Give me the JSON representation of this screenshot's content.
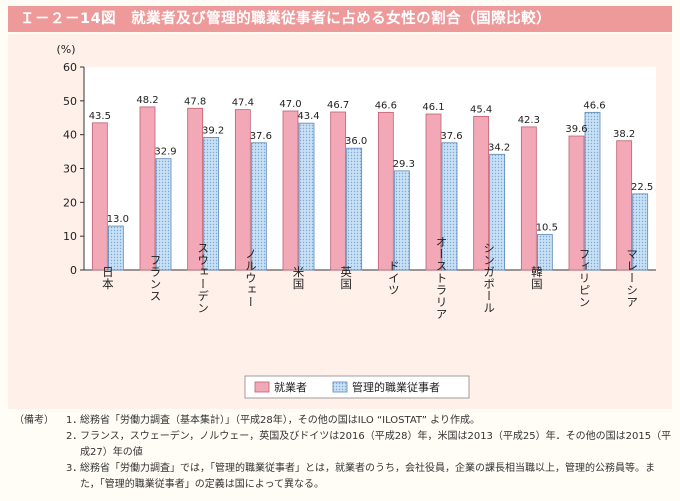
{
  "header": {
    "title": "Ｉ－２－14図　就業者及び管理的職業従事者に占める女性の割合（国際比較）"
  },
  "chart_data": {
    "type": "bar",
    "title": "就業者及び管理的職業従事者に占める女性の割合（国際比較）",
    "ylabel": "(%)",
    "ylim": [
      0,
      60
    ],
    "yticks": [
      0,
      10,
      20,
      30,
      40,
      50,
      60
    ],
    "categories": [
      "日本",
      "フランス",
      "スウェーデン",
      "ノルウェー",
      "米国",
      "英国",
      "ドイツ",
      "オーストラリア",
      "シンガポール",
      "韓国",
      "フィリピン",
      "マレーシア"
    ],
    "series": [
      {
        "name": "就業者",
        "values": [
          43.5,
          48.2,
          47.8,
          47.4,
          47.0,
          46.7,
          46.6,
          46.1,
          45.4,
          42.3,
          39.6,
          38.2
        ]
      },
      {
        "name": "管理的職業従事者",
        "values": [
          13.0,
          32.9,
          39.2,
          37.6,
          43.4,
          36.0,
          29.3,
          37.6,
          34.2,
          10.5,
          46.6,
          22.5
        ]
      }
    ],
    "value_labels": [
      [
        "43.5",
        "48.2",
        "47.8",
        "47.4",
        "47.0",
        "46.7",
        "46.6",
        "46.1",
        "45.4",
        "42.3",
        "39.6",
        "38.2"
      ],
      [
        "13.0",
        "32.9",
        "39.2",
        "37.6",
        "43.4",
        "36.0",
        "29.3",
        "37.6",
        "34.2",
        "10.5",
        "46.6",
        "22.5"
      ]
    ],
    "legend": "bottom-center",
    "colors": {
      "series1": "#f2a8b6",
      "series2": "#bcd8f0",
      "series1_edge": "#c06070",
      "series2_edge": "#5a88b8"
    }
  },
  "notes": {
    "label": "（備考）",
    "items": [
      {
        "num": "1．",
        "text": "総務省「労働力調査（基本集計）」（平成28年），その他の国はILO “ILOSTAT” より作成。"
      },
      {
        "num": "2．",
        "text": "フランス，スウェーデン，ノルウェー，英国及びドイツは2016（平成28）年，米国は2013（平成25）年．その他の国は2015（平成27）年の値"
      },
      {
        "num": "3．",
        "text": "総務省「労働力調査」では，「管理的職業従事者」とは，就業者のうち，会社役員，企業の課長相当職以上，管理的公務員等。また，「管理的職業従事者」の定義は国によって異なる。"
      }
    ]
  }
}
